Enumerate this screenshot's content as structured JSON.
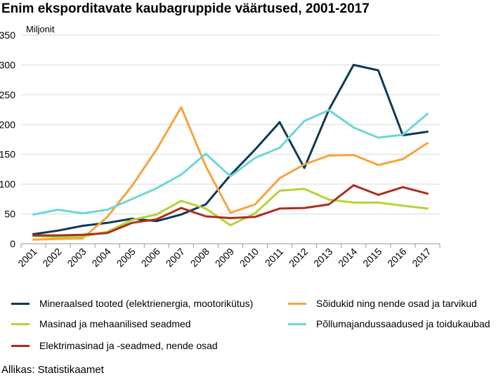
{
  "chart_data": {
    "type": "line",
    "title": "Enim eksporditavate kaubagruppide väärtused, 2001-2017",
    "ylabel": "Miljonit",
    "xlabel": "",
    "ylim": [
      0,
      350
    ],
    "yticks": [
      0,
      50,
      100,
      150,
      200,
      250,
      300,
      350
    ],
    "grid": "horizontal",
    "legend_position": "bottom",
    "categories": [
      "2001",
      "2002",
      "2003",
      "2004",
      "2005",
      "2006",
      "2007",
      "2008",
      "2009",
      "2010",
      "2011",
      "2012",
      "2013",
      "2014",
      "2015",
      "2016",
      "2017"
    ],
    "series": [
      {
        "name": "Mineraalsed tooted (elektrienergia, mootorikütus)",
        "color": "#0d3a52",
        "values": [
          16,
          22,
          30,
          35,
          42,
          38,
          49,
          66,
          115,
          158,
          204,
          127,
          225,
          300,
          291,
          182,
          188
        ]
      },
      {
        "name": "Sõidukid ning nende osad ja tarvikud",
        "color": "#f7a33d",
        "values": [
          7,
          8,
          9,
          45,
          97,
          158,
          229,
          130,
          52,
          66,
          110,
          133,
          148,
          149,
          132,
          142,
          169
        ]
      },
      {
        "name": "Masinad ja mehaanilised seadmed",
        "color": "#b5d334",
        "values": [
          13,
          11,
          12,
          20,
          40,
          49,
          72,
          59,
          31,
          51,
          89,
          92,
          74,
          69,
          69,
          64,
          59
        ]
      },
      {
        "name": "Põllumajandussaadused ja toidukaubad",
        "color": "#6dd6d6",
        "values": [
          49,
          57,
          51,
          57,
          75,
          93,
          116,
          151,
          113,
          144,
          161,
          206,
          224,
          195,
          178,
          183,
          218
        ]
      },
      {
        "name": "Elektrimasinad ja -seadmed, nende osad",
        "color": "#ad2e1e",
        "values": [
          14,
          14,
          15,
          18,
          35,
          41,
          60,
          46,
          43,
          45,
          59,
          60,
          66,
          98,
          82,
          95,
          84
        ]
      }
    ]
  },
  "source": "Allikas: Statistikaamet"
}
